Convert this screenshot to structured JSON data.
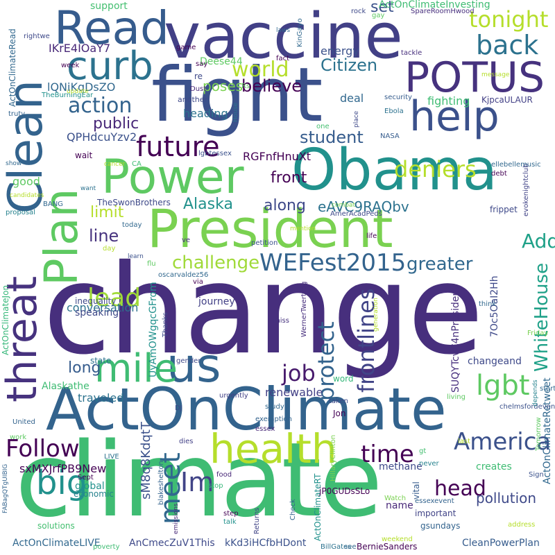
{
  "words": [
    {
      "text": "change",
      "color": "#472f7d",
      "vertical": false
    },
    {
      "text": "climate",
      "color": "#3fbc73",
      "vertical": false
    },
    {
      "text": "ActOnClimate",
      "color": "#33638d",
      "vertical": false
    },
    {
      "text": "fight",
      "color": "#3b518b",
      "vertical": false
    },
    {
      "text": "vaccine",
      "color": "#424086",
      "vertical": false
    },
    {
      "text": "Obama",
      "color": "#21918c",
      "vertical": false
    },
    {
      "text": "President",
      "color": "#7ad151",
      "vertical": false
    },
    {
      "text": "Power",
      "color": "#5ec962",
      "vertical": false
    },
    {
      "text": "POTUS",
      "color": "#46327e",
      "vertical": false
    },
    {
      "text": "Read",
      "color": "#365c8d",
      "vertical": false
    },
    {
      "text": "Clean",
      "color": "#33638d",
      "vertical": true
    },
    {
      "text": "Plan",
      "color": "#5ec962",
      "vertical": true
    },
    {
      "text": "threat",
      "color": "#46327e",
      "vertical": true
    },
    {
      "text": "help",
      "color": "#3b518b",
      "vertical": false
    },
    {
      "text": "curb",
      "color": "#2c728e",
      "vertical": false
    },
    {
      "text": "us",
      "color": "#33638d",
      "vertical": false
    },
    {
      "text": "health",
      "color": "#b5de2b",
      "vertical": false
    },
    {
      "text": "mile",
      "color": "#3fbc73",
      "vertical": false
    },
    {
      "text": "big",
      "color": "#21918c",
      "vertical": false
    },
    {
      "text": "future",
      "color": "#440154",
      "vertical": false
    },
    {
      "text": "WEFest2015",
      "color": "#33638d",
      "vertical": false
    },
    {
      "text": "Follow",
      "color": "#440154",
      "vertical": false
    },
    {
      "text": "world",
      "color": "#b5de2b",
      "vertical": false
    },
    {
      "text": "action",
      "color": "#33638d",
      "vertical": false
    },
    {
      "text": "deniers",
      "color": "#b5de2b",
      "vertical": false
    },
    {
      "text": "tonight",
      "color": "#b5de2b",
      "vertical": false
    },
    {
      "text": "back",
      "color": "#2c728e",
      "vertical": false
    },
    {
      "text": "lgbt",
      "color": "#5ec962",
      "vertical": false
    },
    {
      "text": "America",
      "color": "#3b518b",
      "vertical": false
    },
    {
      "text": "challenge",
      "color": "#a0da39",
      "vertical": false
    },
    {
      "text": "greater",
      "color": "#31688e",
      "vertical": false
    },
    {
      "text": "lead",
      "color": "#a0da39",
      "vertical": false
    },
    {
      "text": "Im",
      "color": "#414487",
      "vertical": false
    },
    {
      "text": "job",
      "color": "#481b6d",
      "vertical": false
    },
    {
      "text": "time",
      "color": "#440154",
      "vertical": false
    },
    {
      "text": "head",
      "color": "#440154",
      "vertical": false
    },
    {
      "text": "Add",
      "color": "#1fa188",
      "vertical": false
    },
    {
      "text": "meet",
      "color": "#31688e",
      "vertical": true
    },
    {
      "text": "protect",
      "color": "#33638d",
      "vertical": true
    },
    {
      "text": "frontlines",
      "color": "#414487",
      "vertical": true
    },
    {
      "text": "WhiteHouse",
      "color": "#1fa188",
      "vertical": true
    },
    {
      "text": "believe",
      "color": "#440154",
      "vertical": false
    },
    {
      "text": "Citizen",
      "color": "#2c728e",
      "vertical": false
    },
    {
      "text": "student",
      "color": "#365c8d",
      "vertical": false
    },
    {
      "text": "public",
      "color": "#482878",
      "vertical": false
    },
    {
      "text": "Alaska",
      "color": "#21918c",
      "vertical": false
    },
    {
      "text": "along",
      "color": "#3e4989",
      "vertical": false
    },
    {
      "text": "line",
      "color": "#46327e",
      "vertical": false
    },
    {
      "text": "limit",
      "color": "#b5de2b",
      "vertical": false
    },
    {
      "text": "front",
      "color": "#440154",
      "vertical": false
    },
    {
      "text": "long",
      "color": "#365c8d",
      "vertical": false
    },
    {
      "text": "set",
      "color": "#3b528b",
      "vertical": false
    },
    {
      "text": "poses",
      "color": "#7ad151",
      "vertical": false
    },
    {
      "text": "eAVC9RAQbv",
      "color": "#2c728e",
      "vertical": false
    },
    {
      "text": "pollution",
      "color": "#3e4989",
      "vertical": false
    },
    {
      "text": "renewable",
      "color": "#424086",
      "vertical": false
    },
    {
      "text": "support",
      "color": "#44bf70",
      "vertical": false
    },
    {
      "text": "energy",
      "color": "#3b518b",
      "vertical": false
    },
    {
      "text": "fighting",
      "color": "#3fbc73",
      "vertical": false
    },
    {
      "text": "deal",
      "color": "#31688e",
      "vertical": false
    },
    {
      "text": "IKrE4IOaY7",
      "color": "#482878",
      "vertical": false
    },
    {
      "text": "lQNiKqDsZO",
      "color": "#31688e",
      "vertical": false
    },
    {
      "text": "heading",
      "color": "#2c728e",
      "vertical": false
    },
    {
      "text": "QPHdcuYzv2",
      "color": "#3b518b",
      "vertical": false
    },
    {
      "text": "RGFnfHnuXt",
      "color": "#440154",
      "vertical": false
    },
    {
      "text": "conversation",
      "color": "#2c728e",
      "vertical": false
    },
    {
      "text": "sxMXJrfPB9New",
      "color": "#440154",
      "vertical": false
    },
    {
      "text": "sM8q8KdqtT",
      "color": "#3b518b",
      "vertical": true
    },
    {
      "text": "UyAmOWgqcGFrom",
      "color": "#21918c",
      "vertical": true
    },
    {
      "text": "SUQYTcvC4nPresident",
      "color": "#472f7d",
      "vertical": true
    },
    {
      "text": "7Oc5OaI2Hh",
      "color": "#3e4989",
      "vertical": true
    },
    {
      "text": "changeand",
      "color": "#3e4989",
      "vertical": false
    },
    {
      "text": "traveled",
      "color": "#2c728e",
      "vertical": false
    },
    {
      "text": "Alaskathe",
      "color": "#3fbc73",
      "vertical": false
    },
    {
      "text": "speaking",
      "color": "#3e4989",
      "vertical": false
    },
    {
      "text": "journey",
      "color": "#424086",
      "vertical": false
    },
    {
      "text": "good",
      "color": "#5ec962",
      "vertical": false
    },
    {
      "text": "Deese44",
      "color": "#5ec962",
      "vertical": false
    },
    {
      "text": "ActOnClimateInvesting",
      "color": "#3fbc73",
      "vertical": false
    },
    {
      "text": "ActOnClimateRetweet",
      "color": "#31688e",
      "vertical": true
    },
    {
      "text": "ActOnClimateRead",
      "color": "#31688e",
      "vertical": true
    },
    {
      "text": "ActOnClimateLIVE",
      "color": "#31688e",
      "vertical": false
    },
    {
      "text": "ActOnClimateJon",
      "color": "#35b779",
      "vertical": true
    },
    {
      "text": "ActOnClimateRT",
      "color": "#21918c",
      "vertical": true
    },
    {
      "text": "AnCmecZuV1This",
      "color": "#3e4989",
      "vertical": false
    },
    {
      "text": "kKd3iHCfbHDont",
      "color": "#3b518b",
      "vertical": false
    },
    {
      "text": "CleanPowerPlan",
      "color": "#365c8d",
      "vertical": false
    },
    {
      "text": "BernieSanders",
      "color": "#440154",
      "vertical": false
    },
    {
      "text": "jP0GUDsSLo",
      "color": "#440154",
      "vertical": false
    },
    {
      "text": "gsundays",
      "color": "#33638d",
      "vertical": false
    },
    {
      "text": "important",
      "color": "#414487",
      "vertical": false
    },
    {
      "text": "methane",
      "color": "#3e4989",
      "vertical": false
    },
    {
      "text": "global",
      "color": "#21918c",
      "vertical": false
    },
    {
      "text": "economic",
      "color": "#26828e",
      "vertical": false
    },
    {
      "text": "vital",
      "color": "#365c8d",
      "vertical": true
    },
    {
      "text": "creates",
      "color": "#3fbc73",
      "vertical": false
    },
    {
      "text": "name",
      "color": "#482878",
      "vertical": false
    },
    {
      "text": "state",
      "color": "#2c728e",
      "vertical": false
    },
    {
      "text": "word",
      "color": "#35b779",
      "vertical": false
    },
    {
      "text": "Jon",
      "color": "#440154",
      "vertical": false
    },
    {
      "text": "inequality",
      "color": "#3e4989",
      "vertical": false
    },
    {
      "text": "TheSwonBrothers",
      "color": "#3e4989",
      "vertical": false
    },
    {
      "text": "evokenightclub",
      "color": "#414487",
      "vertical": true
    },
    {
      "text": "ellebellemusic",
      "color": "#31688e",
      "vertical": false
    },
    {
      "text": "frippet",
      "color": "#3e4989",
      "vertical": false
    },
    {
      "text": "AmerAcadPeds",
      "color": "#3e4989",
      "vertical": false
    },
    {
      "text": "oscarvaldez56",
      "color": "#31688e",
      "vertical": false
    },
    {
      "text": "WernerTwertzog",
      "color": "#472f7d",
      "vertical": true
    },
    {
      "text": "SpareRoomHwood",
      "color": "#472f7d",
      "vertical": false
    },
    {
      "text": "KjpcaULAUR",
      "color": "#424086",
      "vertical": false
    },
    {
      "text": "TheBurningEar",
      "color": "#21918c",
      "vertical": false
    },
    {
      "text": "KinGayo",
      "color": "#31688e",
      "vertical": true
    },
    {
      "text": "lgbtessex",
      "color": "#3b518b",
      "vertical": false
    },
    {
      "text": "HillaryClinton",
      "color": "#7ad151",
      "vertical": true
    },
    {
      "text": "chelmsfordevent",
      "color": "#3b518b",
      "vertical": false
    },
    {
      "text": "blakeshelton",
      "color": "#33638d",
      "vertical": true
    },
    {
      "text": "FABagQTgUIBIG",
      "color": "#33638d",
      "vertical": true
    },
    {
      "text": "essexevent",
      "color": "#33638d",
      "vertical": false
    },
    {
      "text": "BillGates",
      "color": "#2c728e",
      "vertical": false
    },
    {
      "text": "essex",
      "color": "#482878",
      "vertical": false
    },
    {
      "text": "exemption",
      "color": "#33638d",
      "vertical": false
    },
    {
      "text": "study",
      "color": "#31688e",
      "vertical": false
    },
    {
      "text": "urgently",
      "color": "#424086",
      "vertical": false
    },
    {
      "text": "United",
      "color": "#33638d",
      "vertical": false
    },
    {
      "text": "solutions",
      "color": "#44bf70",
      "vertical": false
    },
    {
      "text": "emissions",
      "color": "#482878",
      "vertical": true
    },
    {
      "text": "Returns",
      "color": "#414487",
      "vertical": true
    },
    {
      "text": "Check",
      "color": "#33638d",
      "vertical": true
    },
    {
      "text": "talk",
      "color": "#21918c",
      "vertical": false
    },
    {
      "text": "step",
      "color": "#440154",
      "vertical": false
    },
    {
      "text": "see",
      "color": "#31688e",
      "vertical": false
    },
    {
      "text": "Watch",
      "color": "#7ad151",
      "vertical": false
    },
    {
      "text": "weekend",
      "color": "#b5de2b",
      "vertical": false
    },
    {
      "text": "Sign",
      "color": "#3b518b",
      "vertical": false
    },
    {
      "text": "address",
      "color": "#b5de2b",
      "vertical": false
    },
    {
      "text": "Tomorrow",
      "color": "#5ec962",
      "vertical": true
    },
    {
      "text": "poverty",
      "color": "#3fbc73",
      "vertical": false
    },
    {
      "text": "food",
      "color": "#482878",
      "vertical": false
    },
    {
      "text": "stop",
      "color": "#35b779",
      "vertical": false
    },
    {
      "text": "Sept",
      "color": "#440154",
      "vertical": false
    },
    {
      "text": "never",
      "color": "#26828e",
      "vertical": false
    },
    {
      "text": "last",
      "color": "#b5de2b",
      "vertical": false
    },
    {
      "text": "gt",
      "color": "#44bf70",
      "vertical": false
    },
    {
      "text": "dies",
      "color": "#424086",
      "vertical": false
    },
    {
      "text": "LIVE",
      "color": "#2c728e",
      "vertical": false
    },
    {
      "text": "DJ",
      "color": "#3e4989",
      "vertical": false
    },
    {
      "text": "work",
      "color": "#5ec962",
      "vertical": false
    },
    {
      "text": "gender",
      "color": "#3e4989",
      "vertical": false
    },
    {
      "text": "miss",
      "color": "#46327e",
      "vertical": false
    },
    {
      "text": "taken",
      "color": "#3e4989",
      "vertical": false
    },
    {
      "text": "living",
      "color": "#5ec962",
      "vertical": false
    },
    {
      "text": "start",
      "color": "#31688e",
      "vertical": false
    },
    {
      "text": "depends",
      "color": "#26828e",
      "vertical": true
    },
    {
      "text": "generation",
      "color": "#b5de2b",
      "vertical": true
    },
    {
      "text": "Friday",
      "color": "#7ad151",
      "vertical": false
    },
    {
      "text": "think",
      "color": "#31688e",
      "vertical": false
    },
    {
      "text": "Thanks",
      "color": "#3e4989",
      "vertical": true
    },
    {
      "text": "via",
      "color": "#440154",
      "vertical": false
    },
    {
      "text": "flu",
      "color": "#5ec962",
      "vertical": false
    },
    {
      "text": "ve",
      "color": "#472f7d",
      "vertical": false
    },
    {
      "text": "day",
      "color": "#b5de2b",
      "vertical": false
    },
    {
      "text": "learn",
      "color": "#3b518b",
      "vertical": false
    },
    {
      "text": "petition",
      "color": "#3b518b",
      "vertical": false
    },
    {
      "text": "life",
      "color": "#440154",
      "vertical": false
    },
    {
      "text": "mention",
      "color": "#b5de2b",
      "vertical": false
    },
    {
      "text": "combat",
      "color": "#7ad151",
      "vertical": false
    },
    {
      "text": "BANG",
      "color": "#31688e",
      "vertical": false
    },
    {
      "text": "proposal",
      "color": "#26828e",
      "vertical": false
    },
    {
      "text": "today",
      "color": "#31688e",
      "vertical": false
    },
    {
      "text": "candidates",
      "color": "#b5de2b",
      "vertical": false
    },
    {
      "text": "want",
      "color": "#2c728e",
      "vertical": false
    },
    {
      "text": "wait",
      "color": "#440154",
      "vertical": false
    },
    {
      "text": "show",
      "color": "#31688e",
      "vertical": false
    },
    {
      "text": "debt",
      "color": "#440154",
      "vertical": false
    },
    {
      "text": "CA",
      "color": "#3fbc73",
      "vertical": false
    },
    {
      "text": "cancer",
      "color": "#b5de2b",
      "vertical": false
    },
    {
      "text": "NASA",
      "color": "#365c8d",
      "vertical": false
    },
    {
      "text": "trutv",
      "color": "#33638d",
      "vertical": false
    },
    {
      "text": "one",
      "color": "#44bf70",
      "vertical": false
    },
    {
      "text": "place",
      "color": "#3e4989",
      "vertical": true
    },
    {
      "text": "Ebola",
      "color": "#2c728e",
      "vertical": false
    },
    {
      "text": "security",
      "color": "#365c8d",
      "vertical": false
    },
    {
      "text": "House",
      "color": "#2c728e",
      "vertical": true
    },
    {
      "text": "another",
      "color": "#3e4989",
      "vertical": false
    },
    {
      "text": "Dust",
      "color": "#482878",
      "vertical": false
    },
    {
      "text": "update",
      "color": "#b5de2b",
      "vertical": false
    },
    {
      "text": "week",
      "color": "#440154",
      "vertical": false
    },
    {
      "text": "say",
      "color": "#440154",
      "vertical": false
    },
    {
      "text": "re",
      "color": "#3e4989",
      "vertical": false
    },
    {
      "text": "Rs",
      "color": "#5ec962",
      "vertical": false
    },
    {
      "text": "game",
      "color": "#440154",
      "vertical": false
    },
    {
      "text": "laws",
      "color": "#31688e",
      "vertical": false
    },
    {
      "text": "fact",
      "color": "#440154",
      "vertical": false
    },
    {
      "text": "tackle",
      "color": "#472f7d",
      "vertical": false
    },
    {
      "text": "message",
      "color": "#b5de2b",
      "vertical": false
    },
    {
      "text": "rock",
      "color": "#3e4989",
      "vertical": false
    },
    {
      "text": "gay",
      "color": "#5ec962",
      "vertical": false
    },
    {
      "text": "rightwe",
      "color": "#3e4989",
      "vertical": false
    }
  ]
}
